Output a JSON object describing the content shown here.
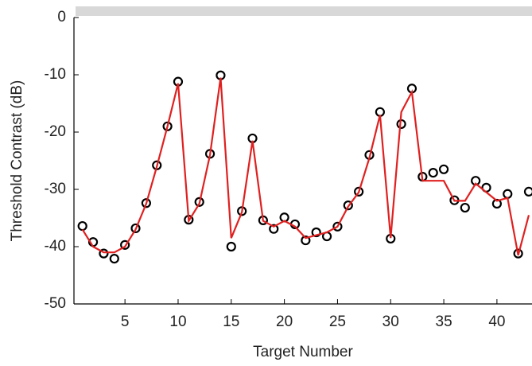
{
  "chart_data": {
    "type": "scatter-line",
    "x_label": "Target Number",
    "y_label": "Threshold Contrast (dB)",
    "x": [
      1,
      2,
      3,
      4,
      5,
      6,
      7,
      8,
      9,
      10,
      11,
      12,
      13,
      14,
      15,
      16,
      17,
      18,
      19,
      20,
      21,
      22,
      23,
      24,
      25,
      26,
      27,
      28,
      29,
      30,
      31,
      32,
      33,
      34,
      35,
      36,
      37,
      38,
      39,
      40,
      41,
      42,
      43
    ],
    "series": [
      {
        "color": "#000000",
        "marker": "circle",
        "values": [
          -36.4,
          -39.2,
          -41.2,
          -42.1,
          -39.7,
          -36.8,
          -32.4,
          -25.8,
          -19.0,
          -11.2,
          -35.3,
          -32.2,
          -23.8,
          -10.1,
          -40.0,
          -33.8,
          -21.1,
          -35.4,
          -36.9,
          -34.9,
          -36.1,
          -38.9,
          -37.5,
          -38.2,
          -36.5,
          -32.8,
          -30.4,
          -24.0,
          -16.5,
          -38.6,
          -18.6,
          -12.4,
          -27.8,
          -27.1,
          -26.5,
          -31.9,
          -33.2,
          -28.5,
          -29.7,
          -32.5,
          -30.8,
          -41.2,
          -30.4
        ]
      },
      {
        "color": "#e02020",
        "marker": "line",
        "values": [
          -37,
          -40,
          -41,
          -41,
          -40,
          -37,
          -32.5,
          -26,
          -19,
          -11.5,
          -35.5,
          -32.5,
          -24,
          -10.5,
          -38.5,
          -34,
          -21.5,
          -35.5,
          -36.5,
          -35.5,
          -36.5,
          -38.5,
          -38,
          -37.5,
          -36.5,
          -33,
          -30.5,
          -24.5,
          -17,
          -38.5,
          -16.5,
          -13,
          -28.5,
          -28.5,
          -28.5,
          -32,
          -32,
          -29,
          -30.5,
          -32,
          -31.5,
          -41.5,
          -34.5
        ]
      }
    ],
    "xlim": [
      0.2,
      43.3
    ],
    "ylim": [
      -50,
      0
    ],
    "xticks": [
      5,
      10,
      15,
      20,
      25,
      30,
      35,
      40
    ],
    "yticks": [
      0,
      -10,
      -20,
      -30,
      -40,
      -50
    ]
  }
}
